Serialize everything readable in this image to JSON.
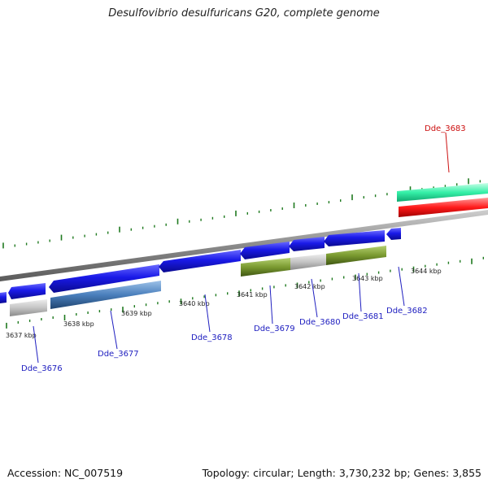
{
  "title": "Desulfovibrio desulfuricans G20, complete genome",
  "footer": {
    "accession": "Accession: NC_007519",
    "info": "Topology: circular; Length: 3,730,232 bp; Genes: 3,855"
  },
  "colors": {
    "backbone": "#8a8a8a",
    "tick": "#1f7a1f",
    "cds_blue": "#1a1ae0",
    "grey": "#c0c0c0",
    "steel": "#4a78b0",
    "olive": "#6e8f2a",
    "mint": "#35f0a8",
    "red": "#ff1a1a",
    "label_blue": "#2020c0",
    "label_red": "#cc1010"
  },
  "scale_labels": [
    "3637 kbp",
    "3638 kbp",
    "3639 kbp",
    "3640 kbp",
    "3641 kbp",
    "3642 kbp",
    "3643 kbp",
    "3644 kbp"
  ],
  "gene_labels": [
    {
      "text": "Dde_3676",
      "color": "blue"
    },
    {
      "text": "Dde_3677",
      "color": "blue"
    },
    {
      "text": "Dde_3678",
      "color": "blue"
    },
    {
      "text": "Dde_3679",
      "color": "blue"
    },
    {
      "text": "Dde_3680",
      "color": "blue"
    },
    {
      "text": "Dde_3681",
      "color": "blue"
    },
    {
      "text": "Dde_3682",
      "color": "blue"
    },
    {
      "text": "Dde_3683",
      "color": "red"
    }
  ]
}
